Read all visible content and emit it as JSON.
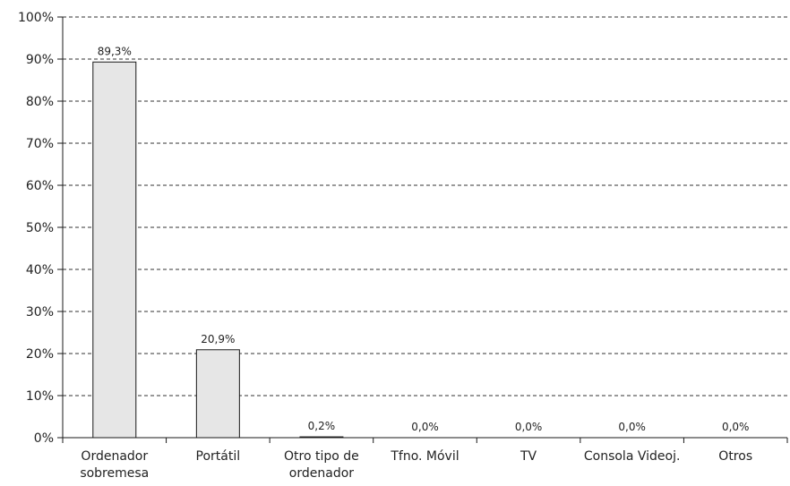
{
  "chart_data": {
    "type": "bar",
    "categories": [
      [
        "Ordenador",
        "sobremesa"
      ],
      [
        "Portátil"
      ],
      [
        "Otro tipo de",
        "ordenador"
      ],
      [
        "Tfno. Móvil"
      ],
      [
        "TV"
      ],
      [
        "Consola Videoj."
      ],
      [
        "Otros"
      ]
    ],
    "values": [
      89.3,
      20.9,
      0.2,
      0.0,
      0.0,
      0.0,
      0.0
    ],
    "data_labels": [
      "89,3%",
      "20,9%",
      "0,2%",
      "0,0%",
      "0,0%",
      "0,0%",
      "0,0%"
    ],
    "ylim": [
      0,
      100
    ],
    "yticks": [
      0,
      10,
      20,
      30,
      40,
      50,
      60,
      70,
      80,
      90,
      100
    ],
    "ytick_labels": [
      "0%",
      "10%",
      "20%",
      "30%",
      "40%",
      "50%",
      "60%",
      "70%",
      "80%",
      "90%",
      "100%"
    ],
    "grid": "horizontal-dashed",
    "title": "",
    "xlabel": "",
    "ylabel": "",
    "colors": {
      "bar_fill": "#e6e6e6",
      "bar_stroke": "#1a1a1a",
      "axis": "#1a1a1a",
      "grid": "#333333"
    }
  }
}
